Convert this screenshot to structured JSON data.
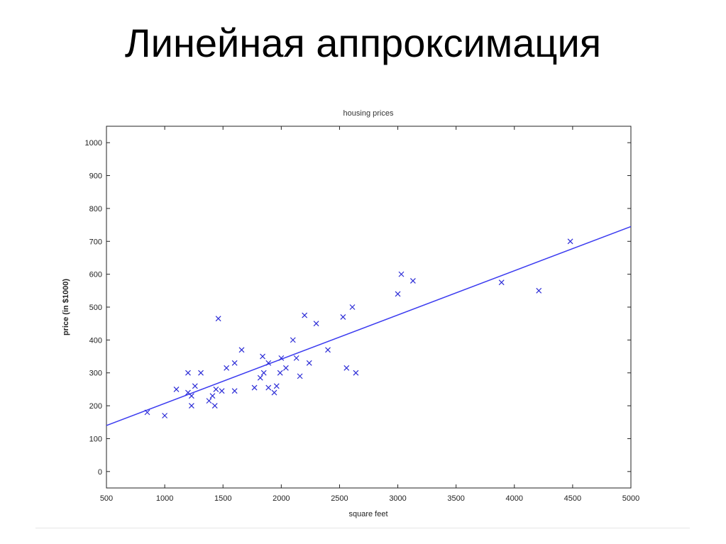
{
  "slide": {
    "title": "Линейная аппроксимация"
  },
  "chart_data": {
    "type": "scatter",
    "title": "housing prices",
    "xlabel": "square feet",
    "ylabel": "price (in $1000)",
    "xlim": [
      500,
      5000
    ],
    "ylim": [
      -50,
      1050
    ],
    "x_ticks": [
      500,
      1000,
      1500,
      2000,
      2500,
      3000,
      3500,
      4000,
      4500,
      5000
    ],
    "y_ticks": [
      0,
      100,
      200,
      300,
      400,
      500,
      600,
      700,
      800,
      900,
      1000
    ],
    "grid": false,
    "marker": "x",
    "marker_color": "#2b2bd6",
    "line_color": "#3b3bf0",
    "series": [
      {
        "values_xy": [
          [
            850,
            180
          ],
          [
            1000,
            170
          ],
          [
            1100,
            250
          ],
          [
            1200,
            300
          ],
          [
            1200,
            240
          ],
          [
            1230,
            230
          ],
          [
            1230,
            200
          ],
          [
            1260,
            260
          ],
          [
            1310,
            300
          ],
          [
            1380,
            215
          ],
          [
            1410,
            230
          ],
          [
            1430,
            200
          ],
          [
            1440,
            250
          ],
          [
            1460,
            465
          ],
          [
            1490,
            245
          ],
          [
            1530,
            315
          ],
          [
            1600,
            330
          ],
          [
            1600,
            245
          ],
          [
            1660,
            370
          ],
          [
            1770,
            255
          ],
          [
            1820,
            285
          ],
          [
            1840,
            350
          ],
          [
            1850,
            300
          ],
          [
            1890,
            330
          ],
          [
            1890,
            255
          ],
          [
            1940,
            240
          ],
          [
            1960,
            260
          ],
          [
            1990,
            300
          ],
          [
            2000,
            345
          ],
          [
            2040,
            315
          ],
          [
            2100,
            400
          ],
          [
            2130,
            345
          ],
          [
            2160,
            290
          ],
          [
            2200,
            475
          ],
          [
            2240,
            330
          ],
          [
            2300,
            450
          ],
          [
            2400,
            370
          ],
          [
            2530,
            470
          ],
          [
            2560,
            315
          ],
          [
            2610,
            500
          ],
          [
            2640,
            300
          ],
          [
            3000,
            540
          ],
          [
            3030,
            600
          ],
          [
            3130,
            580
          ],
          [
            3890,
            575
          ],
          [
            4210,
            550
          ],
          [
            4480,
            700
          ]
        ]
      }
    ],
    "fit_line": {
      "x": [
        500,
        5000
      ],
      "y": [
        140,
        745
      ]
    }
  }
}
